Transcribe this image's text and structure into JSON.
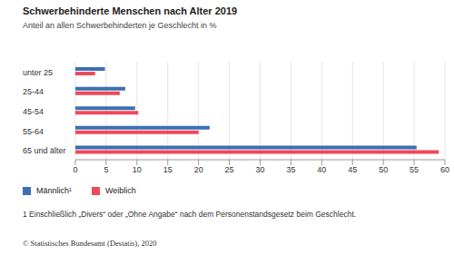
{
  "chart_data": {
    "type": "bar",
    "orientation": "horizontal",
    "title": "Schwerbehinderte Menschen nach Alter 2019",
    "subtitle": "Anteil an allen Schwerbehinderten je Geschlecht in %",
    "categories": [
      "unter 25",
      "25-44",
      "45-54",
      "55-64",
      "65 und älter"
    ],
    "series": [
      {
        "name": "Männlich¹",
        "color": "#3a70b3",
        "values": [
          4.8,
          8.1,
          9.7,
          21.8,
          55.4
        ]
      },
      {
        "name": "Weiblich",
        "color": "#f2475a",
        "values": [
          3.2,
          7.2,
          10.2,
          20.0,
          59.0
        ]
      }
    ],
    "xlim": [
      0,
      60
    ],
    "xticks": [
      0,
      5,
      10,
      15,
      20,
      25,
      30,
      35,
      40,
      45,
      50,
      55,
      60
    ],
    "grid": true,
    "legend": "bottom-left",
    "data_labels": false,
    "footnote": "1 Einschließlich „Divers“ oder „Ohne Angabe“ nach dem Personenstandsgesetz beim Geschlecht.",
    "source": "© Statistisches Bundesamt (Destatis), 2020"
  }
}
